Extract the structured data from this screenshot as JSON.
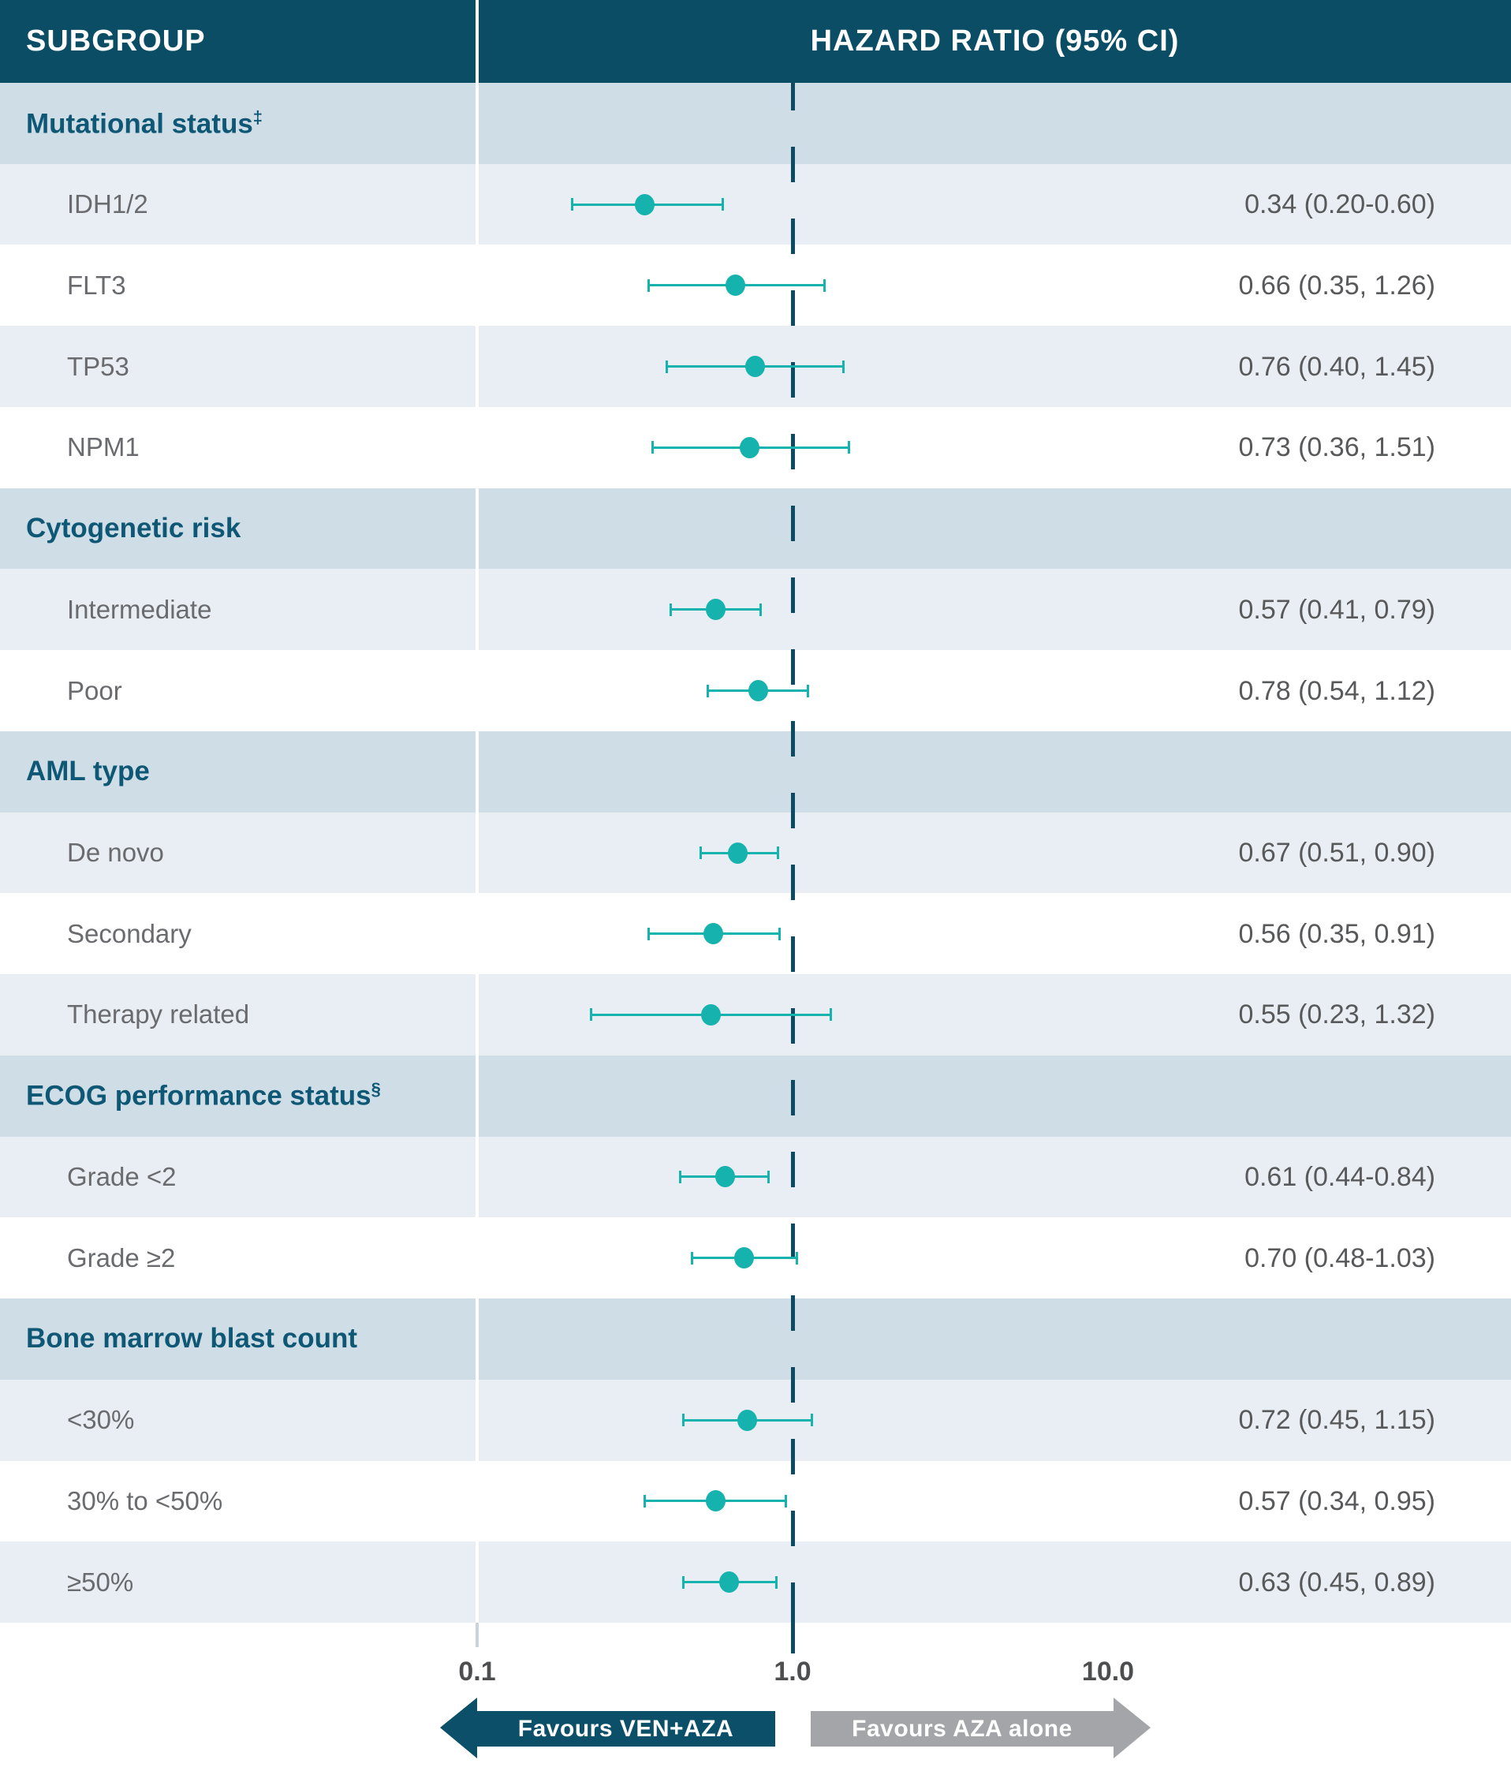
{
  "header": {
    "subgroup": "SUBGROUP",
    "hazard": "HAZARD RATIO (95% CI)"
  },
  "axis": {
    "ticks": [
      "0.1",
      "1.0",
      "10.0"
    ],
    "tick_values": [
      0.1,
      1.0,
      10.0
    ],
    "reference_value": 1.0,
    "scale": "log10"
  },
  "legend": {
    "left": "Favours VEN+AZA",
    "right": "Favours AZA alone"
  },
  "colors": {
    "header_bg": "#0a4d64",
    "section_row_bg": "#cfdde6",
    "light_row_bg": "#e8eef3",
    "white_row_bg": "#ffffff",
    "marker_teal": "#16b2ad",
    "reference_line": "#0d4a63",
    "favours_left_arrow": "#0b4f68",
    "favours_right_arrow": "#a3a5a8",
    "section_text": "#0e5775",
    "data_label_text": "#6a6b6e",
    "value_text": "#58595b",
    "axis_label_text": "#4d4e50"
  },
  "chart_data": {
    "type": "forest",
    "x_scale": "log10",
    "xlim": [
      0.1,
      10.0
    ],
    "x_ticks": [
      0.1,
      1.0,
      10.0
    ],
    "reference_line": 1.0,
    "value_column_header": "HAZARD RATIO (95% CI)",
    "label_column_header": "SUBGROUP",
    "groups": [
      {
        "label": "Mutational status",
        "sup": "‡",
        "rows": [
          {
            "label": "IDH1/2",
            "hr": 0.34,
            "lo": 0.2,
            "hi": 0.6,
            "text": "0.34 (0.20-0.60)"
          },
          {
            "label": "FLT3",
            "hr": 0.66,
            "lo": 0.35,
            "hi": 1.26,
            "text": "0.66 (0.35, 1.26)"
          },
          {
            "label": "TP53",
            "hr": 0.76,
            "lo": 0.4,
            "hi": 1.45,
            "text": "0.76 (0.40, 1.45)"
          },
          {
            "label": "NPM1",
            "hr": 0.73,
            "lo": 0.36,
            "hi": 1.51,
            "text": "0.73 (0.36, 1.51)"
          }
        ]
      },
      {
        "label": "Cytogenetic risk",
        "sup": "",
        "rows": [
          {
            "label": "Intermediate",
            "hr": 0.57,
            "lo": 0.41,
            "hi": 0.79,
            "text": "0.57 (0.41, 0.79)"
          },
          {
            "label": "Poor",
            "hr": 0.78,
            "lo": 0.54,
            "hi": 1.12,
            "text": "0.78 (0.54, 1.12)"
          }
        ]
      },
      {
        "label": "AML type",
        "sup": "",
        "rows": [
          {
            "label": "De novo",
            "hr": 0.67,
            "lo": 0.51,
            "hi": 0.9,
            "text": "0.67 (0.51, 0.90)"
          },
          {
            "label": "Secondary",
            "hr": 0.56,
            "lo": 0.35,
            "hi": 0.91,
            "text": "0.56 (0.35, 0.91)"
          },
          {
            "label": "Therapy related",
            "hr": 0.55,
            "lo": 0.23,
            "hi": 1.32,
            "text": "0.55 (0.23, 1.32)"
          }
        ]
      },
      {
        "label": "ECOG performance status",
        "sup": "§",
        "rows": [
          {
            "label": "Grade <2",
            "hr": 0.61,
            "lo": 0.44,
            "hi": 0.84,
            "text": "0.61 (0.44-0.84)"
          },
          {
            "label": "Grade ≥2",
            "hr": 0.7,
            "lo": 0.48,
            "hi": 1.03,
            "text": "0.70 (0.48-1.03)"
          }
        ]
      },
      {
        "label": "Bone marrow blast count",
        "sup": "",
        "rows": [
          {
            "label": "<30%",
            "hr": 0.72,
            "lo": 0.45,
            "hi": 1.15,
            "text": "0.72 (0.45, 1.15)"
          },
          {
            "label": "30% to <50%",
            "hr": 0.57,
            "lo": 0.34,
            "hi": 0.95,
            "text": "0.57 (0.34, 0.95)"
          },
          {
            "label": "≥50%",
            "hr": 0.63,
            "lo": 0.45,
            "hi": 0.89,
            "text": "0.63 (0.45, 0.89)"
          }
        ]
      }
    ]
  }
}
